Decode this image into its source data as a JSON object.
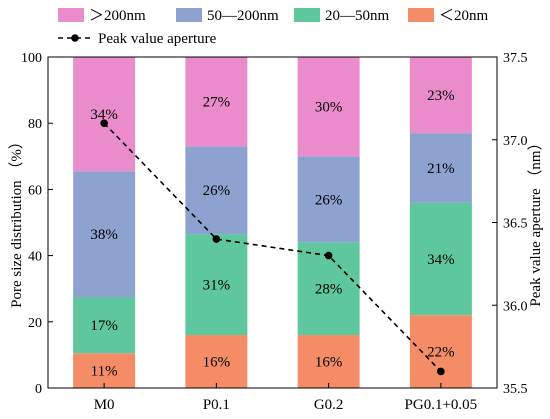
{
  "chart_data": {
    "type": "bar",
    "stacked": true,
    "categories": [
      "M0",
      "P0.1",
      "G0.2",
      "PG0.1+0.05"
    ],
    "series": [
      {
        "name": "＜20nm",
        "color": "#f58c68",
        "values": [
          11,
          16,
          16,
          22
        ]
      },
      {
        "name": "20—50nm",
        "color": "#5ec79e",
        "values": [
          17,
          31,
          28,
          34
        ]
      },
      {
        "name": "50—200nm",
        "color": "#8ea2cf",
        "values": [
          38,
          26,
          26,
          21
        ]
      },
      {
        "name": "＞200nm",
        "color": "#ea8ccc",
        "values": [
          34,
          27,
          30,
          23
        ]
      }
    ],
    "segment_labels": [
      [
        "11%",
        "17%",
        "38%",
        "34%"
      ],
      [
        "16%",
        "31%",
        "26%",
        "27%"
      ],
      [
        "16%",
        "28%",
        "26%",
        "30%"
      ],
      [
        "22%",
        "34%",
        "21%",
        "23%"
      ]
    ],
    "stack_values": [
      [
        10.5,
        17,
        38,
        34.5
      ],
      [
        16,
        30.5,
        26.5,
        27
      ],
      [
        16,
        28,
        26,
        30
      ],
      [
        22,
        34,
        21,
        23
      ]
    ],
    "line_series": {
      "name": "Peak value aperture",
      "color": "#000000",
      "values": [
        37.1,
        36.4,
        36.3,
        35.6
      ],
      "style": "dashed",
      "marker": "circle"
    },
    "ylabel": "Pore size distribution （%）",
    "ylabel_right": "Peak value aperture （nm）",
    "ylim": [
      0,
      100
    ],
    "ylim_right": [
      35.5,
      37.5
    ],
    "yticks": [
      0,
      20,
      40,
      60,
      80,
      100
    ],
    "yticks_right": [
      "35.5",
      "36.0",
      "36.5",
      "37.0",
      "37.5"
    ],
    "legend_placement": "top",
    "grid": false
  }
}
